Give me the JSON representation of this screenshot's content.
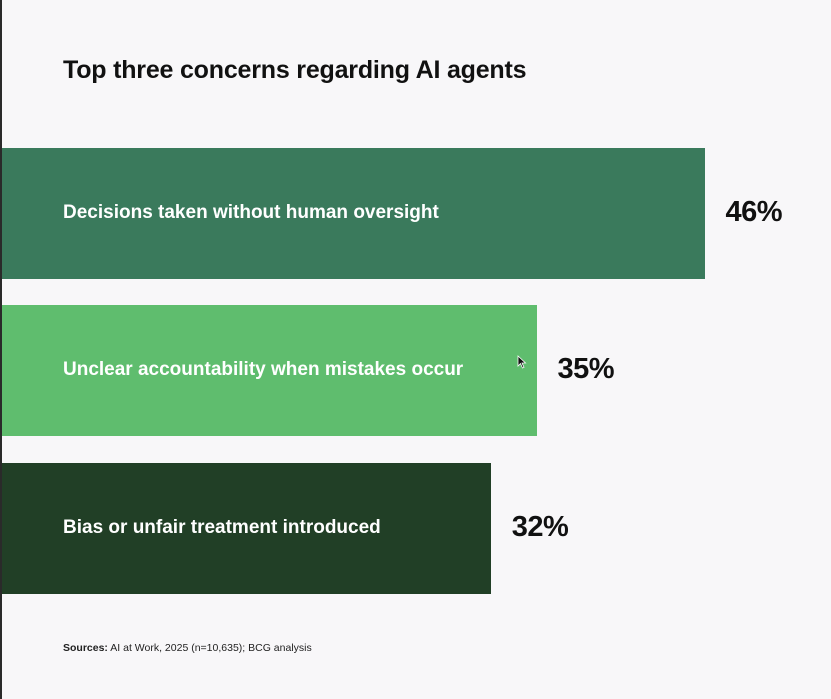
{
  "chart_data": {
    "type": "bar",
    "orientation": "horizontal",
    "title": "Top three concerns regarding AI agents",
    "categories": [
      "Decisions taken without human oversight",
      "Unclear accountability when mistakes occur",
      "Bias or unfair treatment introduced"
    ],
    "values": [
      46,
      35,
      32
    ],
    "value_labels": [
      "46%",
      "35%",
      "32%"
    ],
    "colors": [
      "#3a7a5c",
      "#5fbd6e",
      "#213f26"
    ],
    "unit": "%",
    "xlim": [
      0,
      66
    ],
    "grid": false,
    "legend": "none"
  },
  "footer": {
    "source_label": "Sources:",
    "source_text": "AI at Work, 2025 (n=10,635); BCG analysis"
  }
}
